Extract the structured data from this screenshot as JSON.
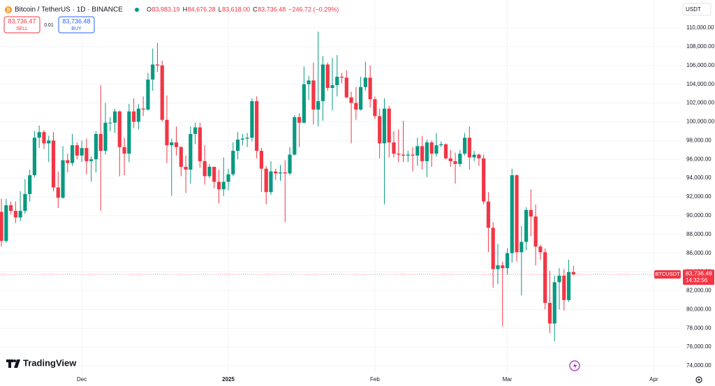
{
  "header": {
    "symbol": "Bitcoin / TetherUS · 1D · BINANCE",
    "ohlc": [
      {
        "label": "O",
        "value": "83,983.19"
      },
      {
        "label": "H",
        "value": "84,676.28"
      },
      {
        "label": "L",
        "value": "83,618.00"
      },
      {
        "label": "C",
        "value": "83,736.48"
      }
    ],
    "change": "−246.72 (−0.29%)",
    "sell_price": "83,736.47",
    "sell": "SELL",
    "spread": "0.01",
    "buy_price": "83,736.48",
    "buy": "BUY",
    "currency": "USDT",
    "logo": "TradingView"
  },
  "chart_data": {
    "type": "candlestick",
    "up_color": "#089981",
    "down_color": "#f23645",
    "open": [
      90400,
      87300,
      91100,
      90500,
      89800,
      90500,
      92300,
      94300,
      98300,
      98900,
      97700,
      98000,
      93000,
      91900,
      95900,
      95600,
      97500,
      96400,
      97200,
      95800,
      96000,
      98700,
      96900,
      99900,
      99900,
      101100,
      97300,
      96600,
      101100,
      100000,
      101400,
      101300,
      104500,
      106100,
      106000,
      100200,
      97500,
      97800,
      97300,
      95200,
      94900,
      98700,
      99400,
      95800,
      94200,
      95200,
      93600,
      92800,
      93600,
      94400,
      96900,
      98100,
      98200,
      98300,
      102200,
      96900,
      95000,
      92500,
      94700,
      94500,
      94600,
      94500,
      96500,
      100500,
      99900,
      104000,
      104400,
      101300,
      102200,
      106100,
      103600,
      103900,
      104800,
      104700,
      102600,
      102000,
      101300,
      103700,
      104700,
      102400,
      100600,
      97700,
      101400,
      97800,
      96600,
      96500,
      96400,
      96500,
      96400,
      97400,
      95800,
      97800,
      96600,
      97500,
      97600,
      96100,
      95800,
      95500,
      96600,
      98300,
      96200,
      96500,
      96100,
      91500,
      88700,
      84300,
      84700,
      84400,
      86000,
      94300,
      86100,
      87200,
      90600,
      89900,
      86700,
      86100,
      80700,
      78500,
      82900,
      83600,
      81000,
      83983.19
    ],
    "high": [
      91800,
      91800,
      91500,
      91500,
      92600,
      93900,
      94900,
      99000,
      99600,
      99100,
      98500,
      98900,
      94700,
      97400,
      96600,
      98700,
      97800,
      98000,
      98200,
      96300,
      99000,
      103900,
      102000,
      100500,
      101400,
      101200,
      98300,
      101900,
      102500,
      101900,
      102700,
      105200,
      107800,
      108400,
      106500,
      102800,
      98200,
      99500,
      97400,
      96400,
      99500,
      99900,
      99900,
      97500,
      95500,
      95200,
      94900,
      96200,
      95000,
      97800,
      98900,
      98700,
      98800,
      102500,
      102700,
      97200,
      95300,
      95800,
      95000,
      95400,
      95900,
      97300,
      100700,
      100900,
      105900,
      104900,
      106300,
      109600,
      107000,
      106300,
      106800,
      107100,
      105200,
      105500,
      103200,
      103700,
      104800,
      106400,
      106000,
      102700,
      101400,
      102500,
      101700,
      99000,
      99200,
      100100,
      96900,
      97300,
      98300,
      98500,
      98100,
      98000,
      98800,
      97900,
      97700,
      97000,
      96700,
      97000,
      98800,
      99500,
      96900,
      96600,
      96500,
      92500,
      89300,
      87000,
      85100,
      86500,
      95000,
      94400,
      88900,
      90900,
      92800,
      91200,
      86900,
      86500,
      84100,
      83600,
      84400,
      84300,
      85300,
      84676.28
    ],
    "low": [
      86700,
      87100,
      90100,
      89200,
      89400,
      90200,
      91500,
      94100,
      97200,
      97100,
      95700,
      92600,
      90800,
      91800,
      94600,
      95300,
      96000,
      95700,
      94400,
      93600,
      94600,
      90500,
      96500,
      99000,
      98800,
      94200,
      94300,
      95700,
      99300,
      99200,
      100600,
      101200,
      103300,
      105300,
      100000,
      95600,
      92100,
      96400,
      94200,
      92400,
      93400,
      97600,
      95100,
      93300,
      94000,
      92900,
      91300,
      92100,
      92700,
      94200,
      96000,
      97500,
      97300,
      97900,
      96100,
      92500,
      91200,
      92200,
      93800,
      93700,
      89300,
      94300,
      96400,
      97300,
      99800,
      102300,
      99700,
      99500,
      100100,
      103300,
      101200,
      102700,
      104100,
      102500,
      97700,
      100200,
      101200,
      103300,
      101500,
      100300,
      96100,
      91200,
      96200,
      96200,
      95700,
      95700,
      95700,
      94700,
      95300,
      94900,
      94100,
      95200,
      96300,
      97300,
      96000,
      95200,
      93400,
      95200,
      96400,
      94900,
      95800,
      95300,
      91200,
      86100,
      82300,
      82700,
      78200,
      83700,
      85000,
      85100,
      81500,
      86300,
      87800,
      84700,
      85300,
      80000,
      77500,
      76600,
      80000,
      79900,
      80800,
      83618
    ],
    "close": [
      87300,
      91100,
      90500,
      89800,
      90500,
      92300,
      94300,
      98300,
      98900,
      97700,
      98000,
      93000,
      91900,
      95900,
      95600,
      97500,
      96400,
      97200,
      95800,
      96000,
      98700,
      96900,
      99900,
      99900,
      101100,
      97300,
      96600,
      101100,
      100000,
      101400,
      101300,
      104500,
      106100,
      106000,
      100200,
      97500,
      97800,
      97300,
      95200,
      94900,
      98700,
      99400,
      95800,
      94200,
      95200,
      93600,
      92800,
      93600,
      94400,
      96900,
      98100,
      98200,
      98300,
      102200,
      96900,
      95000,
      92500,
      94700,
      94500,
      94600,
      94500,
      96500,
      100500,
      99900,
      104000,
      104400,
      101300,
      102200,
      106100,
      103600,
      103900,
      104800,
      104700,
      102600,
      102000,
      101300,
      103700,
      104700,
      102400,
      100600,
      97700,
      101400,
      97800,
      96600,
      96500,
      96400,
      96500,
      96400,
      97400,
      95800,
      97800,
      96600,
      97500,
      97600,
      96100,
      95800,
      95500,
      96600,
      98300,
      96200,
      96500,
      96100,
      91500,
      88700,
      84300,
      84700,
      84400,
      86000,
      94300,
      86100,
      87200,
      90600,
      89900,
      86700,
      86100,
      80700,
      78500,
      82900,
      83600,
      81000,
      83983.19,
      83736.48
    ],
    "xlim": [
      -0.3,
      143.7
    ],
    "xticks": [
      {
        "value": 17,
        "label": "Dec"
      },
      {
        "value": 48,
        "label": "2025"
      },
      {
        "value": 79,
        "label": "Feb"
      },
      {
        "value": 107,
        "label": "Mar"
      },
      {
        "value": 138,
        "label": "Apr"
      }
    ],
    "ylim": [
      73180,
      112975
    ],
    "yticks": [
      {
        "value": 74000,
        "label": "74,000.00"
      },
      {
        "value": 76000,
        "label": "76,000.00"
      },
      {
        "value": 78000,
        "label": "78,000.00"
      },
      {
        "value": 80000,
        "label": "80,000.00"
      },
      {
        "value": 82000,
        "label": "82,000.00"
      },
      {
        "value": 84000,
        "label": "84,000.00"
      },
      {
        "value": 86000,
        "label": "86,000.00"
      },
      {
        "value": 88000,
        "label": "88,000.00"
      },
      {
        "value": 90000,
        "label": "90,000.00"
      },
      {
        "value": 92000,
        "label": "92,000.00"
      },
      {
        "value": 94000,
        "label": "94,000.00"
      },
      {
        "value": 96000,
        "label": "96,000.00"
      },
      {
        "value": 98000,
        "label": "98,000.00"
      },
      {
        "value": 100000,
        "label": "100,000.00"
      },
      {
        "value": 102000,
        "label": "102,000.00"
      },
      {
        "value": 104000,
        "label": "104,000.00"
      },
      {
        "value": 106000,
        "label": "106,000.00"
      },
      {
        "value": 108000,
        "label": "108,000.00"
      },
      {
        "value": 110000,
        "label": "110,000.00"
      }
    ],
    "grid": true,
    "price_tag": {
      "symbol": "BTCUSDT",
      "price": "83,736.48",
      "countdown": "14:32:56"
    }
  }
}
